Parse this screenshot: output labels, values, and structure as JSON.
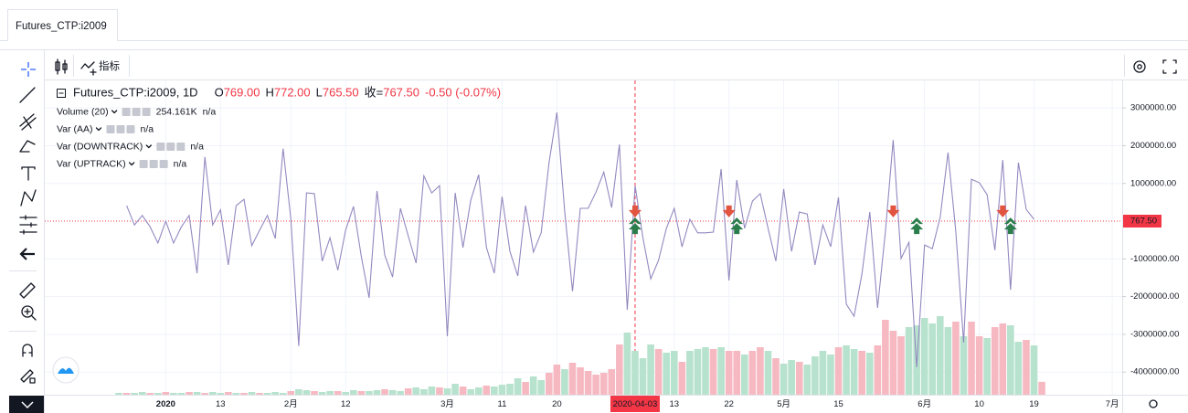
{
  "tab": "Futures_CTP:i2009",
  "toolbar": {
    "indicators": "指标"
  },
  "header": {
    "symbol": "Futures_CTP:i2009, 1D",
    "ohlc": [
      {
        "label": "O",
        "value": "769.00"
      },
      {
        "label": "H",
        "value": "772.00"
      },
      {
        "label": "L",
        "value": "765.50"
      },
      {
        "label": "收=",
        "value": "767.50"
      }
    ],
    "change": "-0.50 (-0.07%)"
  },
  "chart_data": {
    "type": "line",
    "categories": [
      null,
      null,
      null,
      null,
      null,
      null,
      "2020",
      null,
      null,
      null,
      null,
      null,
      null,
      "13",
      null,
      null,
      null,
      null,
      null,
      null,
      null,
      null,
      "2月",
      null,
      null,
      null,
      null,
      null,
      null,
      "12",
      null,
      null,
      null,
      null,
      null,
      null,
      null,
      null,
      null,
      null,
      null,
      null,
      "3月",
      null,
      null,
      null,
      null,
      null,
      null,
      "11",
      null,
      null,
      null,
      null,
      null,
      null,
      "20",
      null,
      null,
      null,
      null,
      null,
      null,
      null,
      null,
      null,
      "2020-04-03",
      null,
      null,
      null,
      null,
      "13",
      null,
      null,
      null,
      null,
      null,
      null,
      "22",
      null,
      null,
      null,
      null,
      null,
      null,
      "5月",
      null,
      null,
      null,
      null,
      null,
      null,
      "15",
      null,
      null,
      null,
      null,
      null,
      null,
      null,
      null,
      null,
      null,
      "6月",
      null,
      null,
      null,
      null,
      null,
      null,
      "10",
      null,
      null,
      null,
      null,
      null,
      null,
      "19",
      null,
      null,
      null,
      null,
      null,
      null,
      null,
      null,
      null,
      "7月",
      null
    ],
    "crosshair": "2020-04-03",
    "ylim": [
      -4600000,
      3730000
    ],
    "yticks": [
      {
        "value": 3000000,
        "label": "3000000.00"
      },
      {
        "value": 2000000,
        "label": "2000000.00"
      },
      {
        "value": 1000000,
        "label": "1000000.00"
      },
      {
        "value": -1000000,
        "label": "-1000000.00"
      },
      {
        "value": -2000000,
        "label": "-2000000.00"
      },
      {
        "value": -3000000,
        "label": "-3000000.00"
      },
      {
        "value": -4000000,
        "label": "-4000000.00"
      }
    ],
    "last_price": {
      "value": 767.5,
      "label": "767.50"
    },
    "grid": true,
    "series": [
      {
        "name": "Volume (20)",
        "type": "volume",
        "color": "#f23645",
        "up_color": "#b7e2cd",
        "down_color": "#f6b9c2",
        "legend_values": [
          "254.161K",
          "n/a"
        ],
        "values": [
          36000,
          36000,
          36000,
          54000,
          36000,
          36000,
          54000,
          36000,
          36000,
          54000,
          54000,
          36000,
          54000,
          36000,
          54000,
          36000,
          36000,
          54000,
          36000,
          36000,
          54000,
          36000,
          72000,
          108000,
          90000,
          72000,
          54000,
          72000,
          72000,
          54000,
          90000,
          72000,
          72000,
          90000,
          108000,
          90000,
          72000,
          126000,
          144000,
          108000,
          162000,
          144000,
          126000,
          216000,
          162000,
          108000,
          144000,
          180000,
          162000,
          198000,
          216000,
          324000,
          252000,
          360000,
          288000,
          432000,
          594000,
          504000,
          630000,
          540000,
          468000,
          396000,
          432000,
          504000,
          990000,
          1224000,
          864000,
          720000,
          990000,
          900000,
          828000,
          864000,
          648000,
          864000,
          900000,
          936000,
          900000,
          936000,
          864000,
          864000,
          792000,
          864000,
          936000,
          864000,
          720000,
          612000,
          684000,
          648000,
          594000,
          756000,
          864000,
          792000,
          936000,
          972000,
          900000,
          864000,
          828000,
          972000,
          1476000,
          1260000,
          1152000,
          1332000,
          1368000,
          1512000,
          1404000,
          1548000,
          1332000,
          1440000,
          1152000,
          1440000,
          1152000,
          1116000,
          1332000,
          1404000,
          1368000,
          1044000,
          1080000,
          972000,
          254161,
          null,
          null,
          null,
          null,
          null,
          null,
          null,
          null,
          null,
          null
        ],
        "rising": [
          true,
          false,
          true,
          true,
          false,
          true,
          false,
          true,
          true,
          false,
          true,
          false,
          true,
          true,
          false,
          true,
          false,
          true,
          false,
          true,
          true,
          true,
          false,
          true,
          true,
          false,
          true,
          true,
          false,
          true,
          true,
          false,
          true,
          true,
          false,
          true,
          true,
          false,
          true,
          true,
          true,
          false,
          true,
          true,
          false,
          true,
          true,
          false,
          true,
          true,
          true,
          true,
          false,
          true,
          true,
          false,
          false,
          true,
          false,
          false,
          false,
          false,
          false,
          false,
          false,
          true,
          true,
          true,
          true,
          false,
          true,
          true,
          false,
          true,
          true,
          true,
          false,
          true,
          false,
          false,
          true,
          false,
          false,
          true,
          false,
          true,
          true,
          false,
          true,
          true,
          true,
          true,
          false,
          true,
          true,
          false,
          true,
          false,
          false,
          false,
          false,
          true,
          true,
          true,
          true,
          true,
          true,
          false,
          true,
          false,
          false,
          true,
          false,
          false,
          true,
          true,
          false,
          true,
          false,
          null,
          null,
          null,
          null,
          null,
          null,
          null,
          null,
          null,
          null
        ]
      },
      {
        "name": "Var (AA)",
        "type": "line",
        "color": "#9488c0",
        "legend_values": [
          "n/a"
        ],
        "values": [
          null,
          410000,
          -100000,
          150000,
          -150000,
          -580000,
          0,
          -580000,
          -150000,
          150000,
          -1380000,
          1700000,
          -100000,
          300000,
          -1160000,
          410000,
          580000,
          -650000,
          -240000,
          150000,
          -460000,
          1920000,
          50000,
          -3310000,
          750000,
          730000,
          -1060000,
          -440000,
          -1300000,
          -240000,
          390000,
          -940000,
          -2030000,
          800000,
          -900000,
          -1480000,
          340000,
          -390000,
          -1110000,
          1200000,
          750000,
          940000,
          -3050000,
          750000,
          -700000,
          560000,
          1230000,
          -700000,
          -1380000,
          650000,
          -800000,
          -1450000,
          410000,
          -820000,
          -310000,
          1550000,
          2880000,
          270000,
          -1860000,
          340000,
          340000,
          770000,
          1300000,
          360000,
          2030000,
          -2350000,
          940000,
          -440000,
          -1530000,
          -1040000,
          -190000,
          340000,
          -680000,
          50000,
          -310000,
          -310000,
          -290000,
          1380000,
          -1570000,
          1090000,
          -190000,
          530000,
          730000,
          -190000,
          -1060000,
          850000,
          -800000,
          240000,
          190000,
          -1160000,
          -100000,
          -680000,
          630000,
          -2200000,
          -2520000,
          -1400000,
          240000,
          -2300000,
          -270000,
          2150000,
          -990000,
          -560000,
          -3870000,
          -630000,
          -730000,
          100000,
          1820000,
          -270000,
          -3220000,
          1110000,
          1020000,
          700000,
          -770000,
          1620000,
          -1820000,
          1550000,
          310000,
          50000,
          null,
          null,
          null,
          null,
          null,
          null,
          null,
          null,
          null,
          null,
          null
        ]
      },
      {
        "name": "Var (DOWNTRACK)",
        "type": "arrow-down",
        "color": "#e25440",
        "legend_values": [
          "n/a"
        ],
        "values": [
          null,
          null,
          null,
          null,
          null,
          null,
          null,
          null,
          null,
          null,
          null,
          null,
          null,
          null,
          null,
          null,
          null,
          null,
          null,
          null,
          null,
          null,
          null,
          null,
          null,
          null,
          null,
          null,
          null,
          null,
          null,
          null,
          null,
          null,
          null,
          null,
          null,
          null,
          null,
          null,
          null,
          null,
          null,
          null,
          null,
          null,
          null,
          null,
          null,
          null,
          null,
          null,
          null,
          null,
          null,
          null,
          null,
          null,
          null,
          null,
          null,
          null,
          null,
          null,
          null,
          null,
          150000,
          null,
          null,
          null,
          null,
          null,
          null,
          null,
          null,
          null,
          null,
          null,
          150000,
          null,
          null,
          null,
          null,
          null,
          null,
          null,
          null,
          null,
          null,
          null,
          null,
          null,
          null,
          null,
          null,
          null,
          null,
          null,
          null,
          150000,
          null,
          null,
          null,
          null,
          null,
          null,
          null,
          null,
          null,
          null,
          null,
          null,
          null,
          150000,
          null,
          null,
          null,
          null,
          null,
          null,
          null,
          null,
          null,
          null,
          null,
          null,
          null,
          null,
          null
        ]
      },
      {
        "name": "Var (UPTRACK)",
        "type": "arrow-up",
        "color": "#2b7d4c",
        "legend_values": [
          "n/a"
        ],
        "values": [
          null,
          null,
          null,
          null,
          null,
          null,
          null,
          null,
          null,
          null,
          null,
          null,
          null,
          null,
          null,
          null,
          null,
          null,
          null,
          null,
          null,
          null,
          null,
          null,
          null,
          null,
          null,
          null,
          null,
          null,
          null,
          null,
          null,
          null,
          null,
          null,
          null,
          null,
          null,
          null,
          null,
          null,
          null,
          null,
          null,
          null,
          null,
          null,
          null,
          null,
          null,
          null,
          null,
          null,
          null,
          null,
          null,
          null,
          null,
          null,
          null,
          null,
          null,
          null,
          null,
          null,
          -100000,
          null,
          null,
          null,
          null,
          null,
          null,
          null,
          null,
          null,
          null,
          null,
          null,
          -100000,
          null,
          null,
          null,
          null,
          null,
          null,
          null,
          null,
          null,
          null,
          null,
          null,
          null,
          null,
          null,
          null,
          null,
          null,
          null,
          null,
          null,
          null,
          -100000,
          null,
          null,
          null,
          null,
          null,
          null,
          null,
          null,
          null,
          null,
          null,
          -100000,
          null,
          null,
          null,
          null,
          null,
          null,
          null,
          null,
          null,
          null,
          null,
          null,
          null,
          null
        ]
      }
    ]
  }
}
